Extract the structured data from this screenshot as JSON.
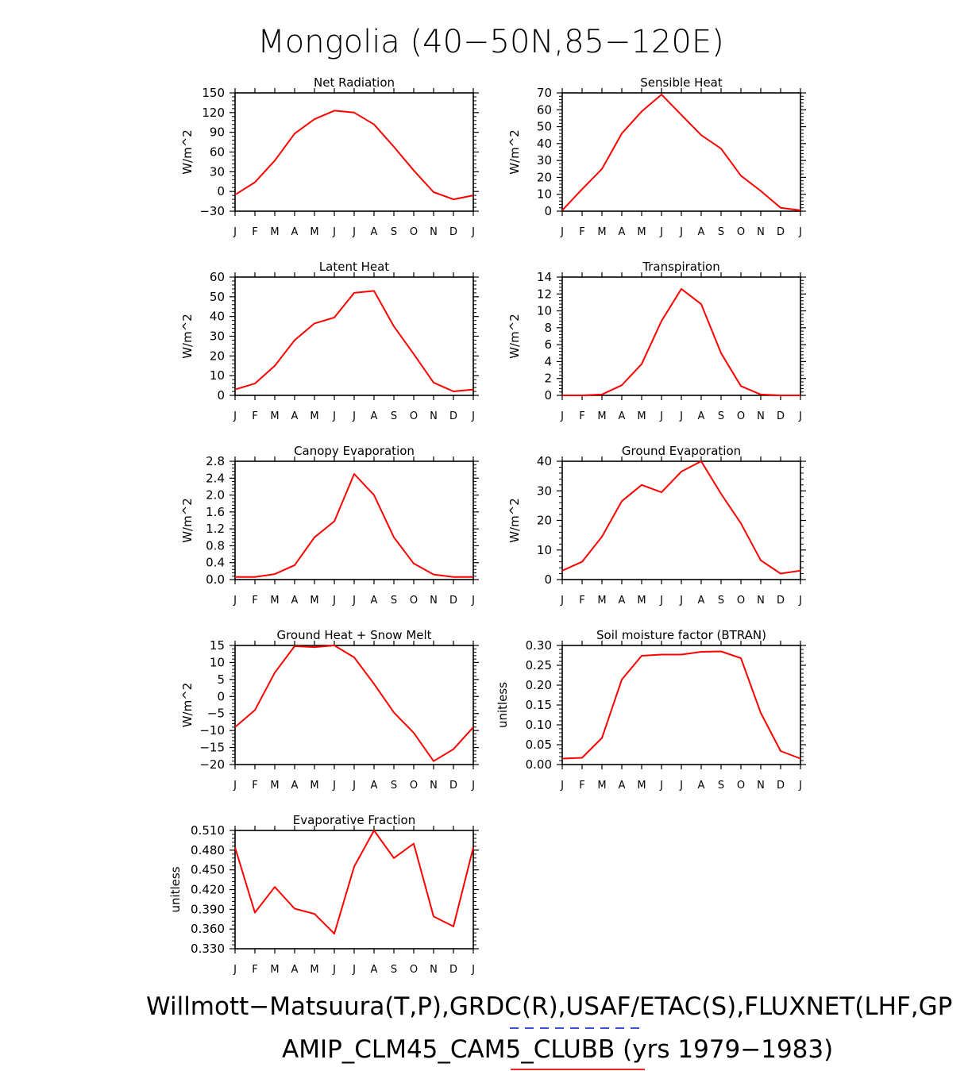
{
  "title": "Mongolia (40−50N,85−120E)",
  "footer": {
    "line1": "Willmott−Matsuura(T,P),GRDC(R),USAF/ETAC(S),FLUXNET(LHF,GP",
    "line2": "AMIP_CLM45_CAM5_CLUBB (yrs 1979−1983)",
    "obs_legend_color": "#3b4fd8",
    "model_legend_color": "#e8262b"
  },
  "line_color": "#ff0000",
  "chart_data": [
    {
      "type": "line",
      "title": "Net Radiation",
      "ylabel": "W/m^2",
      "categories": [
        "J",
        "F",
        "M",
        "A",
        "M",
        "J",
        "J",
        "A",
        "S",
        "O",
        "N",
        "D",
        "J"
      ],
      "ylim": [
        -30,
        150
      ],
      "yticks": [
        "150",
        "120",
        "90",
        "60",
        "30",
        "0",
        "−30"
      ],
      "ytick_values": [
        150,
        120,
        90,
        60,
        30,
        0,
        -30
      ],
      "values": [
        -5,
        14,
        47,
        88,
        110,
        123,
        120,
        102,
        68,
        32,
        -1,
        -12,
        -6
      ]
    },
    {
      "type": "line",
      "title": "Sensible Heat",
      "ylabel": "W/m^2",
      "categories": [
        "J",
        "F",
        "M",
        "A",
        "M",
        "J",
        "J",
        "A",
        "S",
        "O",
        "N",
        "D",
        "J"
      ],
      "ylim": [
        0,
        70
      ],
      "yticks": [
        "70",
        "60",
        "50",
        "40",
        "30",
        "20",
        "10",
        "0"
      ],
      "ytick_values": [
        70,
        60,
        50,
        40,
        30,
        20,
        10,
        0
      ],
      "values": [
        0.5,
        13,
        25,
        46,
        59,
        69,
        57,
        45,
        37,
        21,
        12,
        2,
        0.5
      ]
    },
    {
      "type": "line",
      "title": "Latent Heat",
      "ylabel": "W/m^2",
      "categories": [
        "J",
        "F",
        "M",
        "A",
        "M",
        "J",
        "J",
        "A",
        "S",
        "O",
        "N",
        "D",
        "J"
      ],
      "ylim": [
        0,
        60
      ],
      "yticks": [
        "60",
        "50",
        "40",
        "30",
        "20",
        "10",
        "0"
      ],
      "ytick_values": [
        60,
        50,
        40,
        30,
        20,
        10,
        0
      ],
      "values": [
        3,
        6,
        15,
        28,
        36.5,
        39.5,
        52,
        53,
        35,
        21,
        6.5,
        2,
        3
      ]
    },
    {
      "type": "line",
      "title": "Transpiration",
      "ylabel": "W/m^2",
      "categories": [
        "J",
        "F",
        "M",
        "A",
        "M",
        "J",
        "J",
        "A",
        "S",
        "O",
        "N",
        "D",
        "J"
      ],
      "ylim": [
        0,
        14
      ],
      "yticks": [
        "14",
        "12",
        "10",
        "8",
        "6",
        "4",
        "2",
        "0"
      ],
      "ytick_values": [
        14,
        12,
        10,
        8,
        6,
        4,
        2,
        0
      ],
      "values": [
        0,
        0,
        0.1,
        1.2,
        3.7,
        8.8,
        12.6,
        10.8,
        5,
        1.1,
        0.1,
        0,
        0
      ]
    },
    {
      "type": "line",
      "title": "Canopy Evaporation",
      "ylabel": "W/m^2",
      "categories": [
        "J",
        "F",
        "M",
        "A",
        "M",
        "J",
        "J",
        "A",
        "S",
        "O",
        "N",
        "D",
        "J"
      ],
      "ylim": [
        0,
        2.8
      ],
      "yticks": [
        "2.8",
        "2.4",
        "2.0",
        "1.6",
        "1.2",
        "0.8",
        "0.4",
        "0.0"
      ],
      "ytick_values": [
        2.8,
        2.4,
        2.0,
        1.6,
        1.2,
        0.8,
        0.4,
        0.0
      ],
      "values": [
        0.06,
        0.06,
        0.13,
        0.34,
        1.0,
        1.38,
        2.5,
        2.0,
        1.0,
        0.38,
        0.12,
        0.06,
        0.06
      ]
    },
    {
      "type": "line",
      "title": "Ground Evaporation",
      "ylabel": "W/m^2",
      "categories": [
        "J",
        "F",
        "M",
        "A",
        "M",
        "J",
        "J",
        "A",
        "S",
        "O",
        "N",
        "D",
        "J"
      ],
      "ylim": [
        0,
        40
      ],
      "yticks": [
        "40",
        "30",
        "20",
        "10",
        "0"
      ],
      "ytick_values": [
        40,
        30,
        20,
        10,
        0
      ],
      "values": [
        3,
        6,
        14.5,
        26.5,
        32,
        29.5,
        36.5,
        40,
        29,
        19,
        6.5,
        2,
        3
      ]
    },
    {
      "type": "line",
      "title": "Ground Heat + Snow Melt",
      "ylabel": "W/m^2",
      "categories": [
        "J",
        "F",
        "M",
        "A",
        "M",
        "J",
        "J",
        "A",
        "S",
        "O",
        "N",
        "D",
        "J"
      ],
      "ylim": [
        -20,
        15
      ],
      "yticks": [
        "15",
        "10",
        "5",
        "0",
        "−5",
        "−10",
        "−15",
        "−20"
      ],
      "ytick_values": [
        15,
        10,
        5,
        0,
        -5,
        -10,
        -15,
        -20
      ],
      "values": [
        -9,
        -4,
        7,
        14.8,
        14.5,
        15,
        11.5,
        3.7,
        -4.7,
        -10.7,
        -19,
        -15.5,
        -9
      ]
    },
    {
      "type": "line",
      "title": "Soil moisture factor (BTRAN)",
      "ylabel": "unitless",
      "categories": [
        "J",
        "F",
        "M",
        "A",
        "M",
        "J",
        "J",
        "A",
        "S",
        "O",
        "N",
        "D",
        "J"
      ],
      "ylim": [
        0,
        0.3
      ],
      "yticks": [
        "0.30",
        "0.25",
        "0.20",
        "0.15",
        "0.10",
        "0.05",
        "0.00"
      ],
      "ytick_values": [
        0.3,
        0.25,
        0.2,
        0.15,
        0.1,
        0.05,
        0.0
      ],
      "values": [
        0.015,
        0.017,
        0.067,
        0.214,
        0.274,
        0.277,
        0.277,
        0.284,
        0.285,
        0.268,
        0.13,
        0.034,
        0.015
      ]
    },
    {
      "type": "line",
      "title": "Evaporative Fraction",
      "ylabel": "unitless",
      "categories": [
        "J",
        "F",
        "M",
        "A",
        "M",
        "J",
        "J",
        "A",
        "S",
        "O",
        "N",
        "D",
        "J"
      ],
      "ylim": [
        0.33,
        0.51
      ],
      "yticks": [
        "0.510",
        "0.480",
        "0.450",
        "0.420",
        "0.390",
        "0.360",
        "0.330"
      ],
      "ytick_values": [
        0.51,
        0.48,
        0.45,
        0.42,
        0.39,
        0.36,
        0.33
      ],
      "values": [
        0.484,
        0.385,
        0.424,
        0.391,
        0.383,
        0.353,
        0.455,
        0.51,
        0.468,
        0.49,
        0.379,
        0.364,
        0.484
      ]
    }
  ]
}
